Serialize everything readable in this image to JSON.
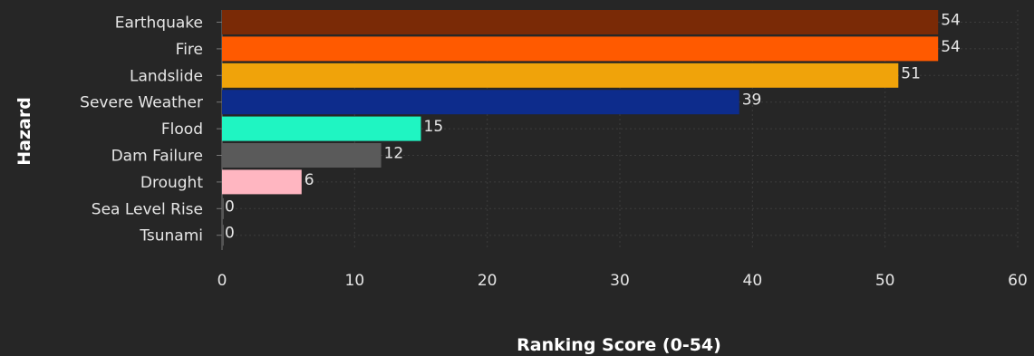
{
  "chart_data": {
    "type": "bar",
    "orientation": "horizontal",
    "categories": [
      "Earthquake",
      "Fire",
      "Landslide",
      "Severe Weather",
      "Flood",
      "Dam Failure",
      "Drought",
      "Sea Level Rise",
      "Tsunami"
    ],
    "values": [
      54,
      54,
      51,
      39,
      15,
      12,
      6,
      0,
      0
    ],
    "value_labels": [
      "54",
      "54",
      "51",
      "39",
      "15",
      "12",
      "6",
      "0",
      "0"
    ],
    "colors": [
      "#7a2a06",
      "#ff5a00",
      "#f0a30a",
      "#0d2c8c",
      "#1ff5c2",
      "#5a5a5a",
      "#ffb6c1",
      "#4a4a4a",
      "#4a4a4a"
    ],
    "xlabel": "Ranking Score (0-54)",
    "ylabel": "Hazard",
    "xlim": [
      0,
      60
    ],
    "xticks": [
      "0",
      "10",
      "20",
      "30",
      "40",
      "50",
      "60"
    ],
    "grid": true,
    "background": "#262626"
  }
}
